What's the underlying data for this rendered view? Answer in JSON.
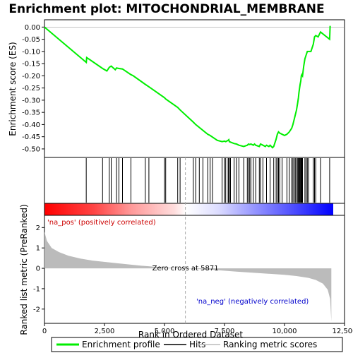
{
  "chart_data": {
    "type": "line",
    "title": "Enrichment plot: MITOCHONDRIAL_MEMBRANE",
    "top_panel": {
      "ylabel": "Enrichment score (ES)",
      "ylim": [
        -0.535,
        0.03
      ],
      "yticks": [
        "0.00",
        "-0.05",
        "-0.10",
        "-0.15",
        "-0.20",
        "-0.25",
        "-0.30",
        "-0.35",
        "-0.40",
        "-0.45",
        "-0.50"
      ],
      "ytick_values": [
        0.0,
        -0.05,
        -0.1,
        -0.15,
        -0.2,
        -0.25,
        -0.3,
        -0.35,
        -0.4,
        -0.45,
        -0.5
      ],
      "series": [
        {
          "name": "Enrichment profile",
          "color": "#00ee00",
          "x": [
            0,
            1740,
            1760,
            2420,
            2600,
            2700,
            2780,
            2950,
            3000,
            3100,
            3250,
            3600,
            3700,
            4200,
            4350,
            5000,
            5050,
            5550,
            5650,
            6200,
            6300,
            6800,
            6900,
            7200,
            7400,
            7500,
            7550,
            7650,
            7680,
            7700,
            7750,
            7900,
            8000,
            8100,
            8300,
            8450,
            8500,
            8550,
            8600,
            8700,
            8750,
            8800,
            8950,
            9000,
            9100,
            9200,
            9250,
            9350,
            9400,
            9500,
            9550,
            9650,
            9700,
            9750,
            9800,
            9900,
            10000,
            10100,
            10200,
            10300,
            10350,
            10400,
            10450,
            10500,
            10550,
            10580,
            10600,
            10620,
            10650,
            10680,
            10700,
            10720,
            10750,
            10800,
            10850,
            10900,
            10950,
            11000,
            11100,
            11200,
            11250,
            11300,
            11400,
            11500,
            11880,
            11900
          ],
          "y": [
            0.0,
            -0.145,
            -0.125,
            -0.17,
            -0.18,
            -0.165,
            -0.16,
            -0.175,
            -0.168,
            -0.17,
            -0.172,
            -0.195,
            -0.2,
            -0.235,
            -0.245,
            -0.29,
            -0.295,
            -0.33,
            -0.34,
            -0.39,
            -0.4,
            -0.44,
            -0.445,
            -0.465,
            -0.47,
            -0.468,
            -0.47,
            -0.465,
            -0.462,
            -0.47,
            -0.472,
            -0.478,
            -0.48,
            -0.485,
            -0.49,
            -0.485,
            -0.48,
            -0.482,
            -0.48,
            -0.485,
            -0.48,
            -0.485,
            -0.49,
            -0.48,
            -0.485,
            -0.49,
            -0.485,
            -0.49,
            -0.485,
            -0.495,
            -0.49,
            -0.46,
            -0.44,
            -0.43,
            -0.435,
            -0.44,
            -0.445,
            -0.44,
            -0.43,
            -0.415,
            -0.4,
            -0.38,
            -0.36,
            -0.34,
            -0.31,
            -0.29,
            -0.27,
            -0.255,
            -0.235,
            -0.22,
            -0.2,
            -0.195,
            -0.2,
            -0.16,
            -0.13,
            -0.115,
            -0.1,
            -0.1,
            -0.1,
            -0.07,
            -0.04,
            -0.035,
            -0.04,
            -0.02,
            -0.05,
            0.005
          ]
        }
      ],
      "hits_label": "Hits",
      "hits_x": [
        1740,
        2420,
        2700,
        2780,
        3000,
        3100,
        3250,
        3600,
        4200,
        4350,
        5000,
        5050,
        5550,
        5650,
        6200,
        6300,
        6450,
        6600,
        6800,
        6900,
        7000,
        7400,
        7500,
        7550,
        7650,
        7680,
        7700,
        7750,
        7900,
        8000,
        8100,
        8300,
        8450,
        8500,
        8550,
        8600,
        8700,
        8800,
        8950,
        9000,
        9100,
        9250,
        9400,
        9550,
        9650,
        9700,
        9750,
        9800,
        9900,
        10100,
        10200,
        10300,
        10350,
        10400,
        10450,
        10500,
        10550,
        10580,
        10600,
        10620,
        10650,
        10680,
        10700,
        10720,
        10750,
        10850,
        10900,
        10950,
        11000,
        11200,
        11250,
        11300,
        11500,
        11880
      ]
    },
    "color_bar": {
      "start_color": "#ff0000",
      "end_color": "#0000ff"
    },
    "bottom_panel": {
      "ylabel": "Ranked list metric (PreRanked)",
      "xlabel": "Rank in Ordered Dataset",
      "xlim": [
        0,
        12500
      ],
      "xticks": [
        "0",
        "2,500",
        "5,000",
        "7,500",
        "10,000",
        "12,500"
      ],
      "xtick_values": [
        0,
        2500,
        5000,
        7500,
        10000,
        12500
      ],
      "ylim": [
        -2.7,
        2.6
      ],
      "yticks": [
        "2",
        "1",
        "0",
        "-1",
        "-2"
      ],
      "ytick_values": [
        2,
        1,
        0,
        -1,
        -2
      ],
      "series_name": "Ranking metric scores",
      "metric_x": [
        0,
        100,
        300,
        600,
        1000,
        1500,
        2000,
        3000,
        4000,
        5000,
        5871,
        7000,
        8000,
        9000,
        10000,
        10500,
        11000,
        11300,
        11600,
        11800,
        11900,
        11950
      ],
      "metric_y": [
        1.8,
        1.35,
        1.0,
        0.8,
        0.62,
        0.48,
        0.38,
        0.25,
        0.13,
        0.04,
        0.0,
        -0.07,
        -0.16,
        -0.24,
        -0.32,
        -0.38,
        -0.47,
        -0.57,
        -0.75,
        -1.05,
        -1.5,
        -2.6
      ],
      "zero_cross_text": "Zero cross at 5871",
      "zero_cross_x": 5871,
      "pos_label": "'na_pos' (positively correlated)",
      "neg_label": "'na_neg' (negatively correlated)",
      "pos_color": "#cc0000",
      "neg_color": "#0000cc"
    },
    "legend": {
      "items": [
        {
          "label": "Enrichment profile",
          "color": "#00ee00"
        },
        {
          "label": "Hits",
          "color": "#000000"
        },
        {
          "label": "Ranking metric scores",
          "color": "#bbbbbb"
        }
      ]
    }
  }
}
